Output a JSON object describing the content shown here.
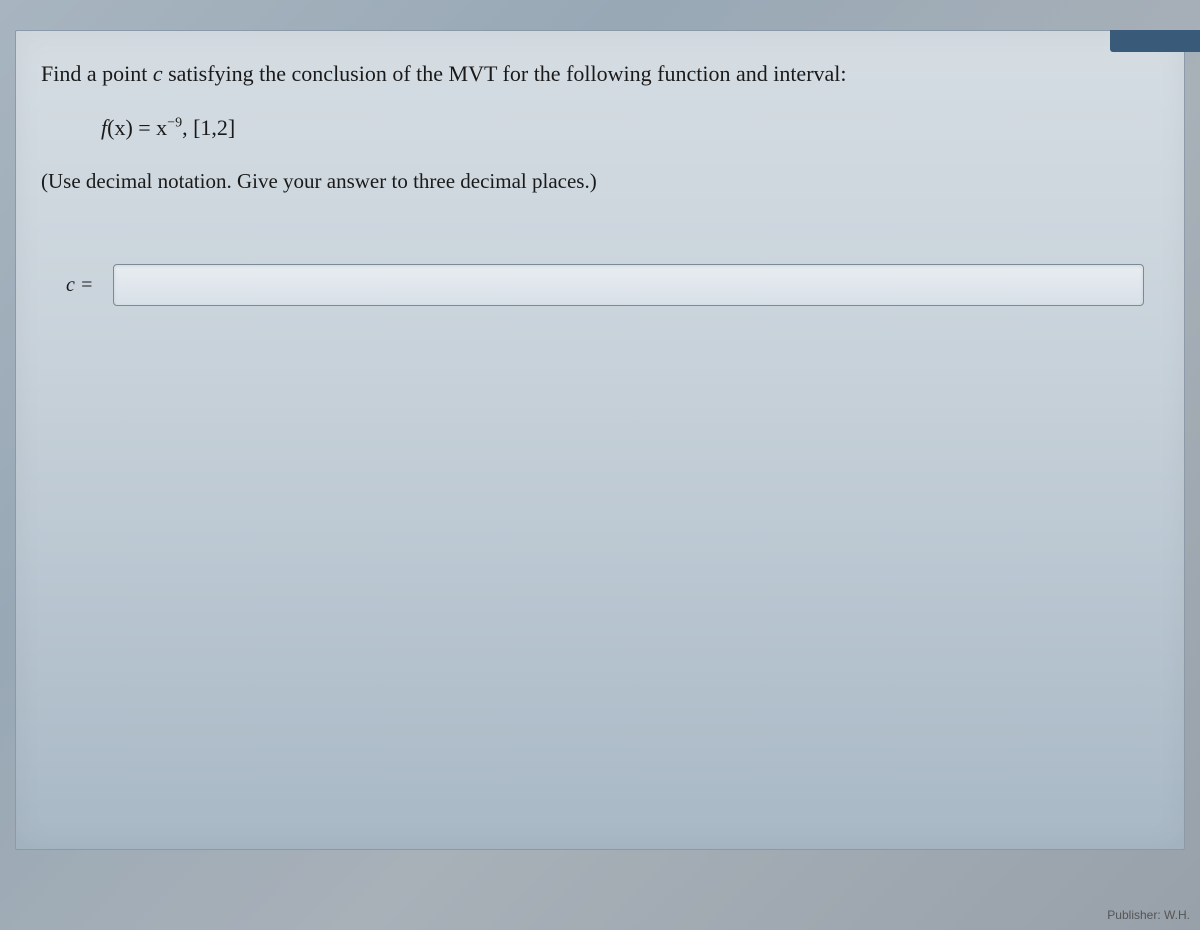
{
  "problem": {
    "prompt_prefix": "Find a point ",
    "variable_c": "c",
    "prompt_suffix": " satisfying the conclusion of the MVT for the following function and interval:",
    "function_prefix": "f",
    "function_arg": "(x) = x",
    "function_exponent": "−9",
    "function_interval": ", [1,2]",
    "instruction": "(Use decimal notation. Give your answer to three decimal places.)",
    "answer_label": "c =",
    "answer_value": ""
  },
  "footer": {
    "publisher": "Publisher: W.H."
  },
  "colors": {
    "text": "#1a1a1a",
    "border": "#7a8a98",
    "container_bg_top": "#d5dde3",
    "container_bg_bottom": "#a8b8c5",
    "body_bg": "#a0b0bc",
    "input_bg": "#e0e8ef"
  },
  "typography": {
    "body_font": "Georgia, serif",
    "problem_fontsize": 22,
    "instruction_fontsize": 21,
    "label_fontsize": 20,
    "footer_fontsize": 12
  }
}
